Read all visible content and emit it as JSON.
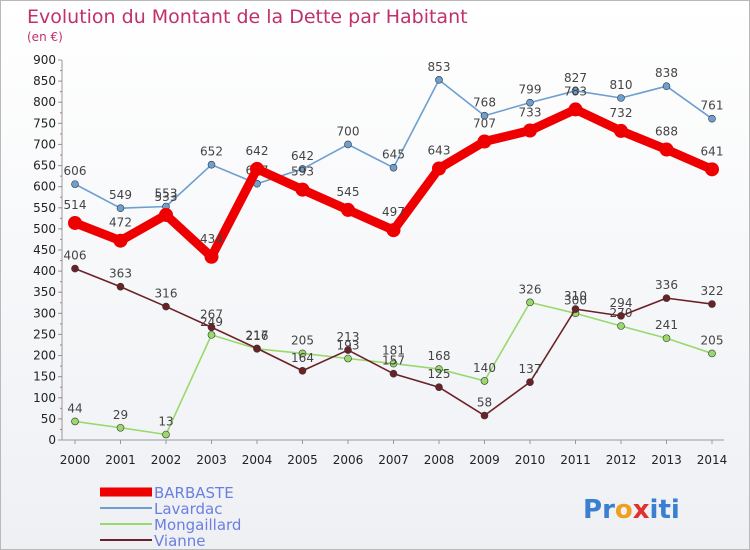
{
  "chart_data": {
    "type": "line",
    "title": "Evolution du Montant de la Dette par Habitant",
    "subtitle": "(en €)",
    "xlabel": "",
    "ylabel": "",
    "ylim": [
      0,
      900
    ],
    "yticks": [
      0,
      50,
      100,
      150,
      200,
      250,
      300,
      350,
      400,
      450,
      500,
      550,
      600,
      650,
      700,
      750,
      800,
      850,
      900
    ],
    "grid": false,
    "legend_position": "bottom-left",
    "categories": [
      "2000",
      "2001",
      "2002",
      "2003",
      "2004",
      "2005",
      "2006",
      "2007",
      "2008",
      "2009",
      "2010",
      "2011",
      "2012",
      "2013",
      "2014"
    ],
    "series": [
      {
        "name": "BARBASTE",
        "color": "#ee0000",
        "values": [
          514,
          472,
          533,
          434,
          642,
          593,
          545,
          497,
          643,
          707,
          733,
          783,
          732,
          688,
          641
        ]
      },
      {
        "name": "Lavardac",
        "color": "#6d9fd0",
        "values": [
          606,
          549,
          553,
          652,
          607,
          642,
          700,
          645,
          853,
          768,
          799,
          827,
          810,
          838,
          761
        ]
      },
      {
        "name": "Mongaillard",
        "color": "#99d96c",
        "values": [
          44,
          29,
          13,
          249,
          216,
          205,
          193,
          181,
          168,
          140,
          326,
          300,
          270,
          241,
          205
        ]
      },
      {
        "name": "Vianne",
        "color": "#6b2226",
        "values": [
          406,
          363,
          316,
          267,
          217,
          164,
          213,
          157,
          125,
          58,
          137,
          310,
          294,
          336,
          322
        ]
      }
    ]
  },
  "branding": {
    "logo_letters": [
      "P",
      "r",
      "o",
      "x",
      "i",
      "t",
      "i"
    ],
    "logo_colors": [
      "#3a7fd0",
      "#3a7fd0",
      "#f0a020",
      "#e03030",
      "#3a7fd0",
      "#3a7fd0",
      "#3a7fd0"
    ]
  }
}
